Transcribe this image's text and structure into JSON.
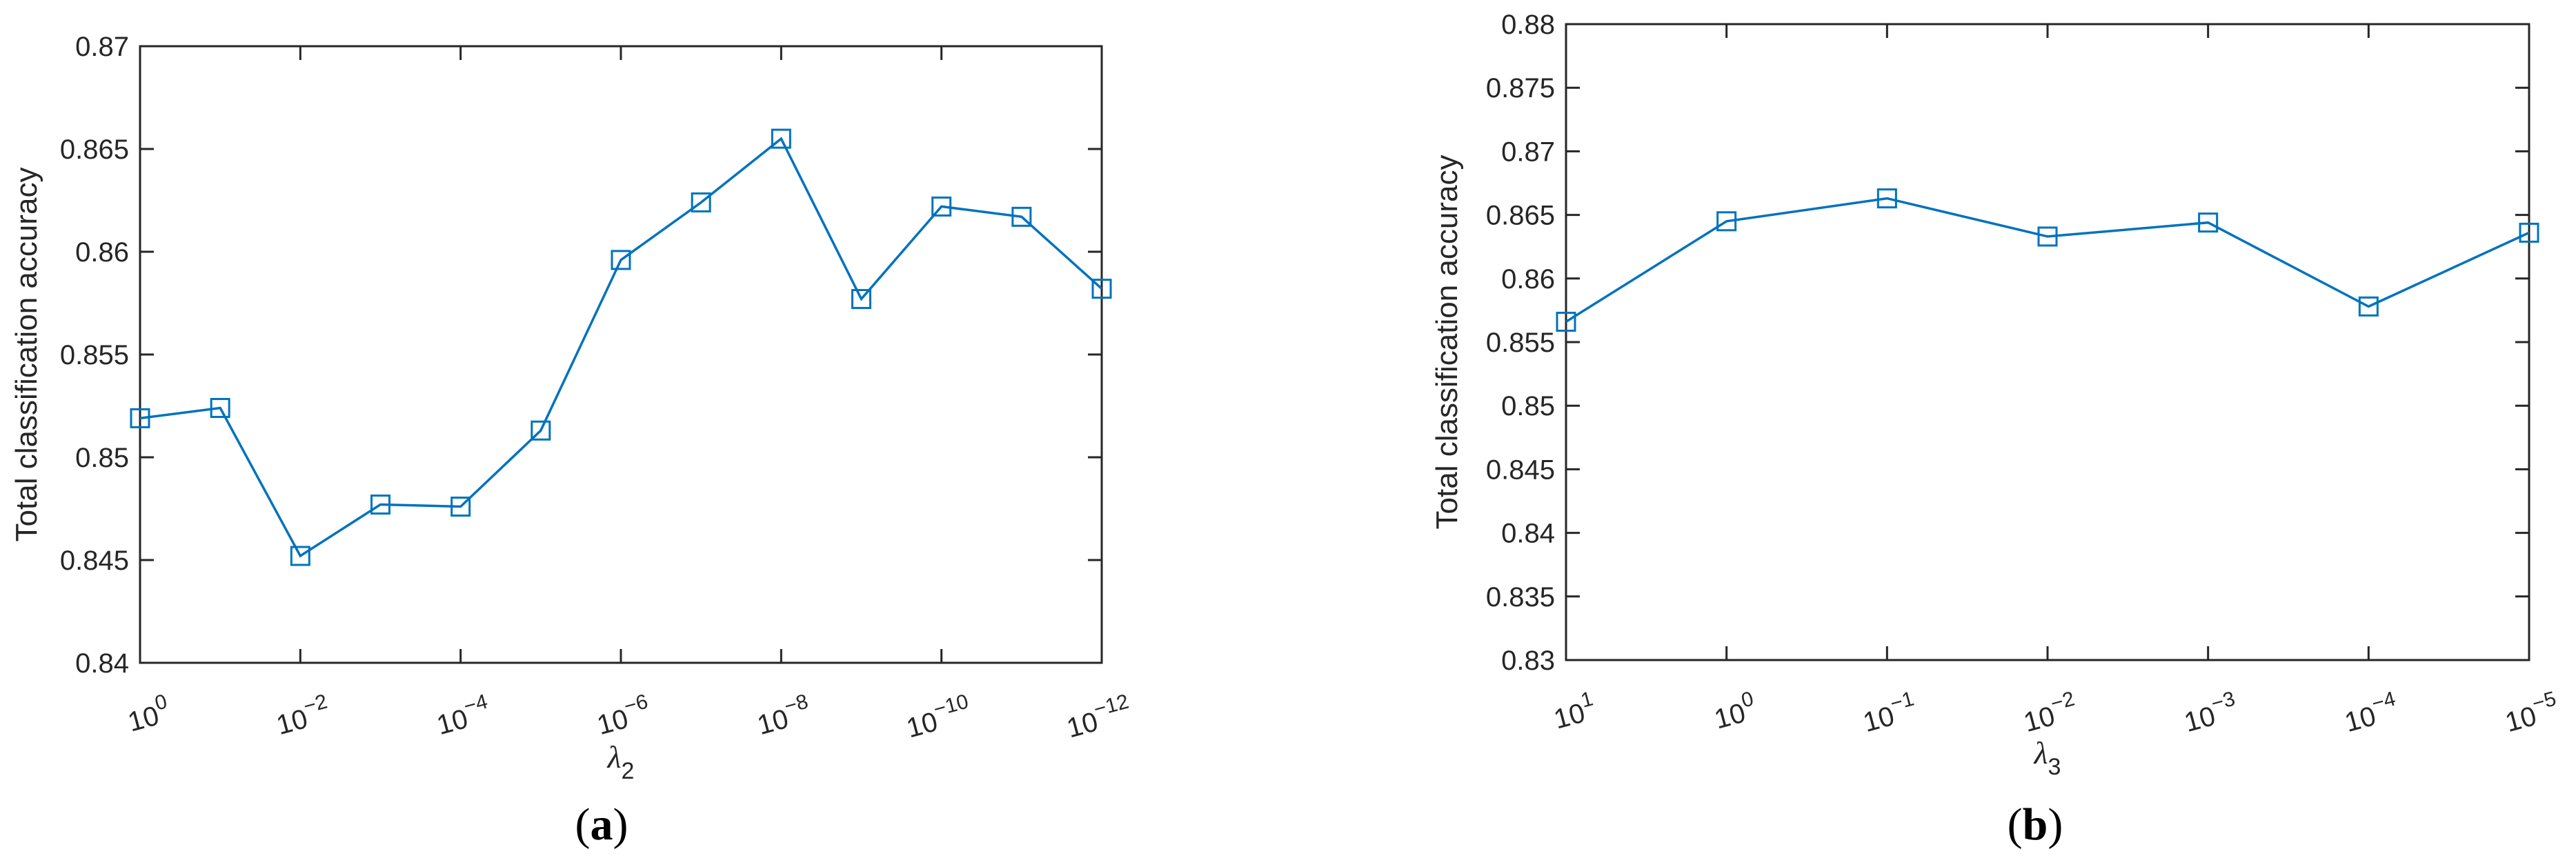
{
  "figure": {
    "background": "#ffffff",
    "axis_color": "#262626",
    "text_color": "#262626"
  },
  "chart_data": [
    {
      "panel": "a",
      "type": "line",
      "ylabel": "Total classification accuracy",
      "xlabel_base": "λ",
      "xlabel_subscript": "2",
      "caption": "(a)",
      "caption_parts": [
        "(",
        "a",
        ")"
      ],
      "x_scale": "log",
      "x_exponents": [
        0,
        -1,
        -2,
        -3,
        -4,
        -5,
        -6,
        -7,
        -8,
        -9,
        -10,
        -11,
        -12
      ],
      "x_tick_exponents": [
        0,
        -2,
        -4,
        -6,
        -8,
        -10,
        -12
      ],
      "x_tick_labels": [
        "10^0",
        "10^−2",
        "10^−4",
        "10^−6",
        "10^−8",
        "10^−10",
        "10^−12"
      ],
      "values": [
        0.8519,
        0.8524,
        0.8452,
        0.8477,
        0.8476,
        0.8513,
        0.8596,
        0.8624,
        0.8655,
        0.8577,
        0.8622,
        0.8617,
        0.8582
      ],
      "ylim": [
        0.84,
        0.87
      ],
      "y_ticks": [
        0.84,
        0.845,
        0.85,
        0.855,
        0.86,
        0.865,
        0.87
      ],
      "y_tick_labels": [
        "0.84",
        "0.845",
        "0.85",
        "0.855",
        "0.86",
        "0.865",
        "0.87"
      ],
      "line_color": "#0072BD",
      "marker": "open-square",
      "marker_size": 26,
      "grid": false,
      "legend": null
    },
    {
      "panel": "b",
      "type": "line",
      "ylabel": "Total classification accuracy",
      "xlabel_base": "λ",
      "xlabel_subscript": "3",
      "caption": "(b)",
      "caption_parts": [
        "(",
        "b",
        ")"
      ],
      "x_scale": "log",
      "x_exponents": [
        1,
        0,
        -1,
        -2,
        -3,
        -4,
        -5
      ],
      "x_tick_exponents": [
        1,
        0,
        -1,
        -2,
        -3,
        -4,
        -5
      ],
      "x_tick_labels": [
        "10^1",
        "10^0",
        "10^−1",
        "10^−2",
        "10^−3",
        "10^−4",
        "10^−5"
      ],
      "values": [
        0.8566,
        0.8645,
        0.8663,
        0.8633,
        0.8644,
        0.8578,
        0.8636
      ],
      "ylim": [
        0.83,
        0.88
      ],
      "y_ticks": [
        0.83,
        0.835,
        0.84,
        0.845,
        0.85,
        0.855,
        0.86,
        0.865,
        0.87,
        0.875,
        0.88
      ],
      "y_tick_labels": [
        "0.83",
        "0.835",
        "0.84",
        "0.845",
        "0.85",
        "0.855",
        "0.86",
        "0.865",
        "0.87",
        "0.875",
        "0.88"
      ],
      "line_color": "#0072BD",
      "marker": "open-square",
      "marker_size": 26,
      "grid": false,
      "legend": null
    }
  ]
}
